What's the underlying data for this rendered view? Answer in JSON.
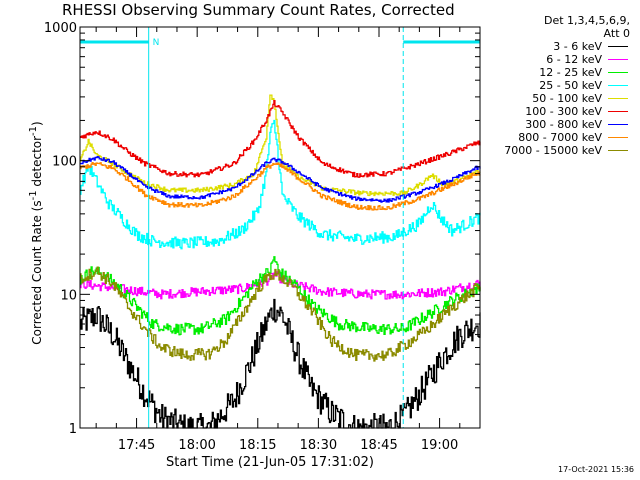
{
  "title": "RHESSI Observing Summary Count Rates, Corrected",
  "legend_header": [
    "Det 1,3,4,5,6,9,",
    "Att 0"
  ],
  "x_axis_title": "Start Time (21-Jun-05 17:31:02)",
  "y_axis_title_parts": [
    "Corrected Count Rate (s",
    "-1",
    " detector",
    "-1",
    ")"
  ],
  "timestamp": "17-Oct-2021 15:36",
  "colors": {
    "axis": "#000000",
    "night_marker": "#00e5ee"
  },
  "chart_data": {
    "type": "line",
    "title": "RHESSI Observing Summary Count Rates, Corrected",
    "x_axis": {
      "label": "Start Time (21-Jun-05 17:31:02)",
      "unit": "minutes since 17:31:02",
      "range": [
        0,
        99
      ],
      "ticks": [
        {
          "value": 14,
          "label": "17:45"
        },
        {
          "value": 29,
          "label": "18:00"
        },
        {
          "value": 44,
          "label": "18:15"
        },
        {
          "value": 59,
          "label": "18:30"
        },
        {
          "value": 74,
          "label": "18:45"
        },
        {
          "value": 89,
          "label": "19:00"
        }
      ]
    },
    "y_axis": {
      "label": "Corrected Count Rate (s-1 detector-1)",
      "scale": "log",
      "range": [
        1,
        1000
      ],
      "ticks": [
        {
          "value": 1,
          "label": "1"
        },
        {
          "value": 10,
          "label": "10"
        },
        {
          "value": 100,
          "label": "100"
        },
        {
          "value": 1000,
          "label": "1000"
        }
      ]
    },
    "night_markers": [
      {
        "start": 0,
        "end": 17,
        "label": "N"
      },
      {
        "start": 80,
        "end": 99,
        "label": ""
      }
    ],
    "series": [
      {
        "name": "3 - 6 keV",
        "color": "#000000",
        "noise": 0.25,
        "points": [
          [
            0,
            6
          ],
          [
            4,
            7
          ],
          [
            8,
            5
          ],
          [
            12,
            3
          ],
          [
            16,
            1.8
          ],
          [
            20,
            1.2
          ],
          [
            26,
            1
          ],
          [
            32,
            1
          ],
          [
            38,
            1.6
          ],
          [
            42,
            3
          ],
          [
            46,
            6
          ],
          [
            48,
            8
          ],
          [
            50,
            7
          ],
          [
            53,
            4
          ],
          [
            57,
            2
          ],
          [
            62,
            1.3
          ],
          [
            68,
            1
          ],
          [
            76,
            1
          ],
          [
            80,
            1.2
          ],
          [
            85,
            2
          ],
          [
            90,
            3.5
          ],
          [
            94,
            5
          ],
          [
            98,
            6
          ]
        ]
      },
      {
        "name": "6 - 12 keV",
        "color": "#ff00ff",
        "noise": 0.08,
        "points": [
          [
            0,
            12
          ],
          [
            10,
            11
          ],
          [
            20,
            10
          ],
          [
            30,
            10.5
          ],
          [
            40,
            11
          ],
          [
            46,
            12.5
          ],
          [
            48,
            14
          ],
          [
            52,
            12
          ],
          [
            60,
            10.5
          ],
          [
            70,
            10
          ],
          [
            80,
            10
          ],
          [
            90,
            10.5
          ],
          [
            98,
            12
          ]
        ]
      },
      {
        "name": "12 - 25 keV",
        "color": "#00ee00",
        "noise": 0.1,
        "points": [
          [
            0,
            13
          ],
          [
            3,
            15
          ],
          [
            6,
            14
          ],
          [
            10,
            11
          ],
          [
            14,
            8
          ],
          [
            18,
            6
          ],
          [
            24,
            5.5
          ],
          [
            30,
            5.5
          ],
          [
            36,
            6.5
          ],
          [
            40,
            9
          ],
          [
            44,
            13
          ],
          [
            47,
            15
          ],
          [
            48,
            19
          ],
          [
            49,
            15
          ],
          [
            53,
            12
          ],
          [
            58,
            8
          ],
          [
            64,
            6
          ],
          [
            72,
            5.5
          ],
          [
            80,
            5.5
          ],
          [
            86,
            7
          ],
          [
            92,
            9
          ],
          [
            98,
            11
          ]
        ]
      },
      {
        "name": "25 - 50 keV",
        "color": "#00ffff",
        "noise": 0.1,
        "points": [
          [
            0,
            62
          ],
          [
            2,
            92
          ],
          [
            4,
            70
          ],
          [
            7,
            48
          ],
          [
            10,
            38
          ],
          [
            14,
            28
          ],
          [
            18,
            25
          ],
          [
            26,
            24
          ],
          [
            34,
            25
          ],
          [
            40,
            30
          ],
          [
            44,
            42
          ],
          [
            46,
            80
          ],
          [
            47,
            160
          ],
          [
            48,
            190
          ],
          [
            49,
            110
          ],
          [
            50,
            55
          ],
          [
            54,
            38
          ],
          [
            60,
            28
          ],
          [
            68,
            26
          ],
          [
            78,
            27
          ],
          [
            84,
            34
          ],
          [
            87,
            48
          ],
          [
            89,
            38
          ],
          [
            92,
            30
          ],
          [
            96,
            34
          ],
          [
            98,
            37
          ]
        ]
      },
      {
        "name": "50 - 100 keV",
        "color": "#dddd00",
        "noise": 0.04,
        "points": [
          [
            0,
            100
          ],
          [
            2,
            140
          ],
          [
            4,
            110
          ],
          [
            8,
            95
          ],
          [
            12,
            80
          ],
          [
            16,
            68
          ],
          [
            22,
            60
          ],
          [
            30,
            60
          ],
          [
            38,
            66
          ],
          [
            43,
            80
          ],
          [
            46,
            150
          ],
          [
            47,
            320
          ],
          [
            48,
            280
          ],
          [
            49,
            160
          ],
          [
            50,
            95
          ],
          [
            54,
            75
          ],
          [
            60,
            62
          ],
          [
            70,
            57
          ],
          [
            80,
            57
          ],
          [
            84,
            66
          ],
          [
            87,
            78
          ],
          [
            90,
            66
          ],
          [
            94,
            72
          ],
          [
            98,
            82
          ]
        ]
      },
      {
        "name": "100 - 300 keV",
        "color": "#ee0000",
        "noise": 0.04,
        "points": [
          [
            0,
            150
          ],
          [
            4,
            165
          ],
          [
            8,
            145
          ],
          [
            12,
            115
          ],
          [
            16,
            95
          ],
          [
            22,
            80
          ],
          [
            30,
            78
          ],
          [
            38,
            95
          ],
          [
            43,
            140
          ],
          [
            46,
            200
          ],
          [
            48,
            270
          ],
          [
            50,
            230
          ],
          [
            54,
            150
          ],
          [
            60,
            95
          ],
          [
            68,
            78
          ],
          [
            76,
            80
          ],
          [
            84,
            95
          ],
          [
            92,
            115
          ],
          [
            98,
            135
          ]
        ]
      },
      {
        "name": "300 - 800 keV",
        "color": "#0000ff",
        "noise": 0.03,
        "points": [
          [
            0,
            96
          ],
          [
            4,
            105
          ],
          [
            8,
            98
          ],
          [
            12,
            80
          ],
          [
            16,
            64
          ],
          [
            22,
            54
          ],
          [
            30,
            53
          ],
          [
            38,
            62
          ],
          [
            43,
            80
          ],
          [
            46,
            96
          ],
          [
            48,
            102
          ],
          [
            50,
            98
          ],
          [
            54,
            82
          ],
          [
            60,
            62
          ],
          [
            68,
            52
          ],
          [
            76,
            50
          ],
          [
            84,
            58
          ],
          [
            92,
            72
          ],
          [
            98,
            88
          ]
        ]
      },
      {
        "name": "800 - 7000 keV",
        "color": "#ff8800",
        "noise": 0.04,
        "points": [
          [
            0,
            88
          ],
          [
            4,
            95
          ],
          [
            8,
            88
          ],
          [
            12,
            72
          ],
          [
            16,
            56
          ],
          [
            22,
            47
          ],
          [
            30,
            46
          ],
          [
            38,
            54
          ],
          [
            43,
            72
          ],
          [
            46,
            88
          ],
          [
            48,
            95
          ],
          [
            50,
            90
          ],
          [
            54,
            74
          ],
          [
            60,
            54
          ],
          [
            68,
            45
          ],
          [
            76,
            44
          ],
          [
            84,
            52
          ],
          [
            92,
            66
          ],
          [
            98,
            80
          ]
        ]
      },
      {
        "name": "7000 - 15000 keV",
        "color": "#8b8b00",
        "noise": 0.1,
        "points": [
          [
            0,
            13
          ],
          [
            4,
            15
          ],
          [
            8,
            12
          ],
          [
            12,
            8
          ],
          [
            16,
            5.5
          ],
          [
            20,
            4
          ],
          [
            26,
            3.5
          ],
          [
            32,
            3.6
          ],
          [
            36,
            4.5
          ],
          [
            40,
            7
          ],
          [
            44,
            11
          ],
          [
            47,
            14
          ],
          [
            49,
            14
          ],
          [
            53,
            11
          ],
          [
            58,
            7
          ],
          [
            62,
            4.5
          ],
          [
            68,
            3.5
          ],
          [
            76,
            3.5
          ],
          [
            82,
            4.5
          ],
          [
            86,
            5.5
          ],
          [
            92,
            8
          ],
          [
            98,
            11
          ]
        ]
      }
    ]
  }
}
